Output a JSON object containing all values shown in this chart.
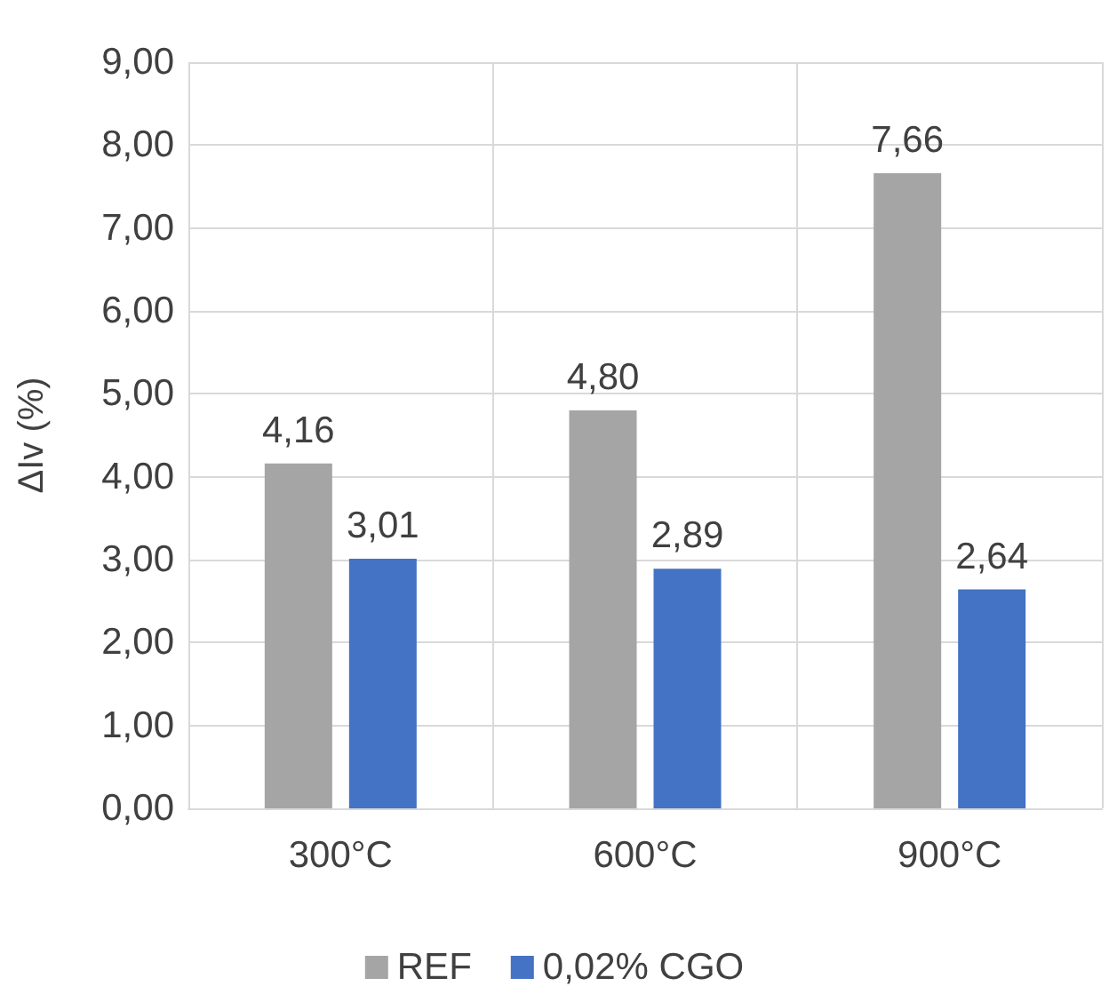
{
  "chart_data": {
    "type": "bar",
    "ylabel": "ΔIv (%)",
    "categories": [
      "300°C",
      "600°C",
      "900°C"
    ],
    "series": [
      {
        "name": "REF",
        "color": "#a5a5a5",
        "values": [
          4.16,
          4.8,
          7.66
        ],
        "value_labels": [
          "4,16",
          "4,80",
          "7,66"
        ]
      },
      {
        "name": "0,02% CGO",
        "color": "#4472c4",
        "values": [
          3.01,
          2.89,
          2.64
        ],
        "value_labels": [
          "3,01",
          "2,89",
          "2,64"
        ]
      }
    ],
    "ylim": [
      0,
      9
    ],
    "yticks": [
      {
        "value": 0,
        "label": "0,00"
      },
      {
        "value": 1,
        "label": "1,00"
      },
      {
        "value": 2,
        "label": "2,00"
      },
      {
        "value": 3,
        "label": "3,00"
      },
      {
        "value": 4,
        "label": "4,00"
      },
      {
        "value": 5,
        "label": "5,00"
      },
      {
        "value": 6,
        "label": "6,00"
      },
      {
        "value": 7,
        "label": "7,00"
      },
      {
        "value": 8,
        "label": "8,00"
      },
      {
        "value": 9,
        "label": "9,00"
      }
    ],
    "grid": true,
    "legend": "bottom"
  }
}
